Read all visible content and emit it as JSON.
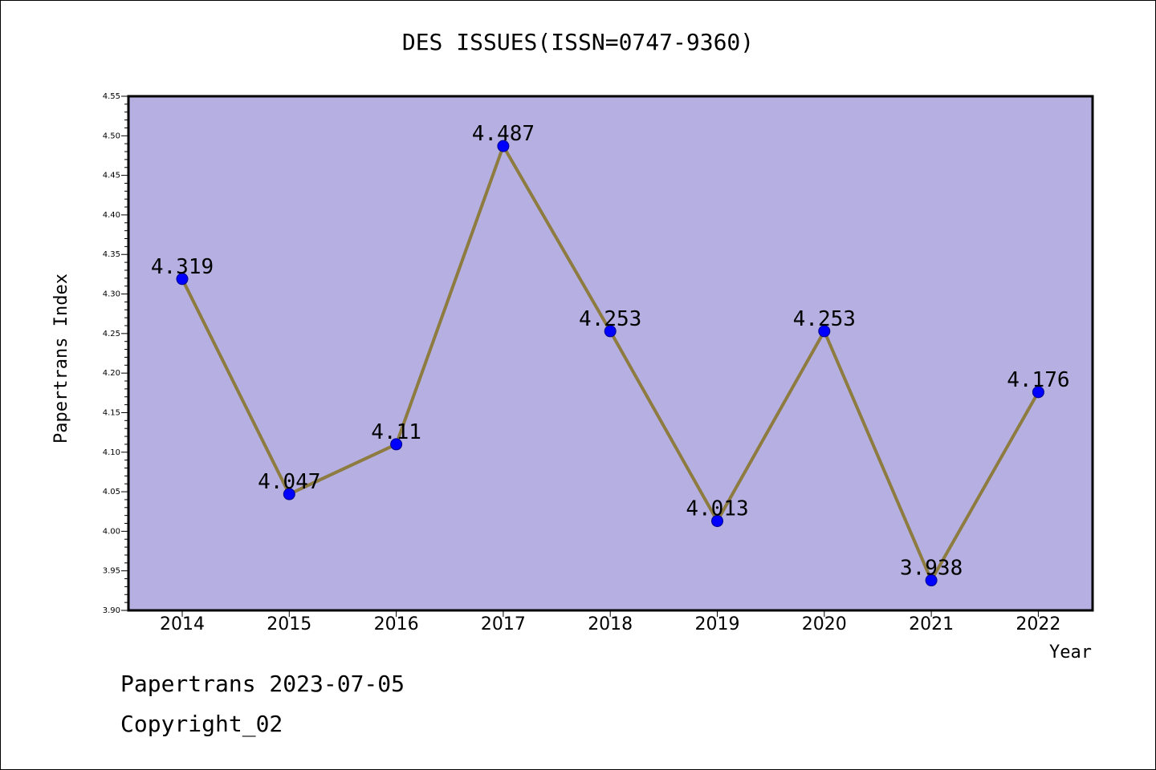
{
  "chart_data": {
    "type": "line",
    "title": "DES ISSUES(ISSN=0747-9360)",
    "xlabel": "Year",
    "ylabel": "Papertrans Index",
    "categories": [
      "2014",
      "2015",
      "2016",
      "2017",
      "2018",
      "2019",
      "2020",
      "2021",
      "2022"
    ],
    "series": [
      {
        "values": [
          4.319,
          4.047,
          4.11,
          4.487,
          4.253,
          4.013,
          4.253,
          3.938,
          4.176
        ],
        "labels": [
          "4.319",
          "4.047",
          "4.11",
          "4.487",
          "4.253",
          "4.013",
          "4.253",
          "3.938",
          "4.176"
        ]
      }
    ],
    "ylim": [
      3.9,
      4.55
    ],
    "yticks": [
      "3.90",
      "3.95",
      "4.00",
      "4.05",
      "4.10",
      "4.15",
      "4.20",
      "4.25",
      "4.30",
      "4.35",
      "4.40",
      "4.45",
      "4.50",
      "4.55"
    ],
    "grid": false,
    "colors": {
      "plot_background": "#b5b0e1",
      "line": "#8d7b3f",
      "marker": "#0000ff"
    }
  },
  "footer": {
    "line1": "Papertrans 2023-07-05",
    "line2": "Copyright_02"
  }
}
